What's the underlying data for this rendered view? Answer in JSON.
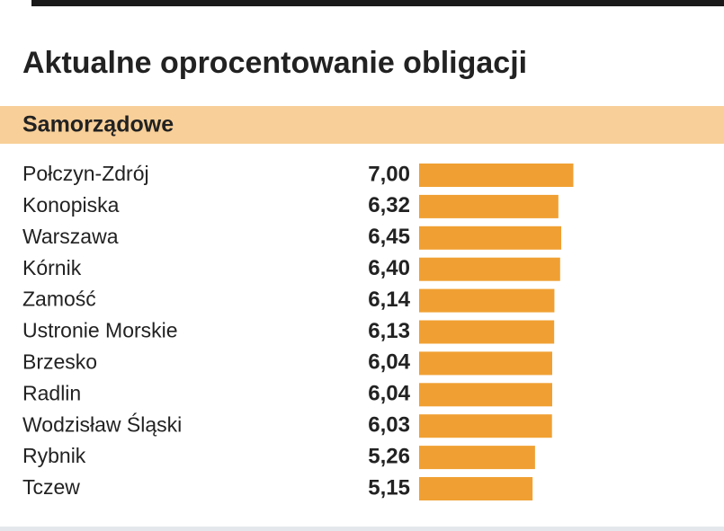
{
  "chart_data": {
    "type": "barh",
    "title": "Aktualne oprocentowanie obligacji",
    "subtitle": "Samorządowe",
    "categories": [
      "Połczyn-Zdrój",
      "Konopiska",
      "Warszawa",
      "Kórnik",
      "Zamość",
      "Ustronie Morskie",
      "Brzesko",
      "Radlin",
      "Wodzisław Śląski",
      "Rybnik",
      "Tczew"
    ],
    "values": [
      7.0,
      6.32,
      6.45,
      6.4,
      6.14,
      6.13,
      6.04,
      6.04,
      6.03,
      5.26,
      5.15
    ],
    "value_labels": [
      "7,00",
      "6,32",
      "6,45",
      "6,40",
      "6,14",
      "6,13",
      "6,04",
      "6,04",
      "6,03",
      "5,26",
      "5,15"
    ],
    "color": "#f0a032"
  }
}
